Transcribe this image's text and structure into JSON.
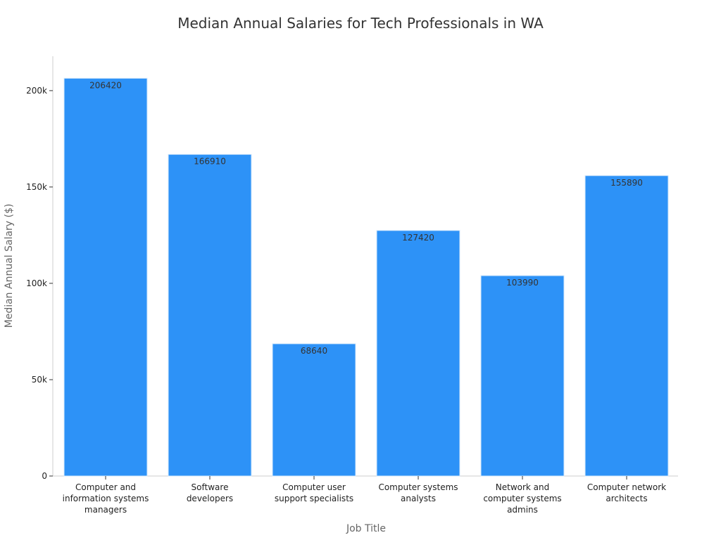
{
  "chart_data": {
    "type": "bar",
    "title": "Median Annual Salaries for Tech Professionals in WA",
    "xlabel": "Job Title",
    "ylabel": "Median Annual Salary ($)",
    "ylim": [
      0,
      217000
    ],
    "yticks": [
      0,
      50000,
      100000,
      150000,
      200000
    ],
    "ytick_labels": [
      "0",
      "50k",
      "100k",
      "150k",
      "200k"
    ],
    "categories": [
      [
        "Computer and",
        "information systems",
        "managers"
      ],
      [
        "Software",
        "developers"
      ],
      [
        "Computer user",
        "support specialists"
      ],
      [
        "Computer systems",
        "analysts"
      ],
      [
        "Network and",
        "computer systems",
        "admins"
      ],
      [
        "Computer network",
        "architects"
      ]
    ],
    "values": [
      206420,
      166910,
      68640,
      127420,
      103990,
      155890
    ],
    "data_labels": [
      "206420",
      "166910",
      "68640",
      "127420",
      "103990",
      "155890"
    ],
    "bar_color": "#2d92f7",
    "bar_edge_color": "#d6e9fb",
    "grid": false,
    "legend": "none"
  }
}
